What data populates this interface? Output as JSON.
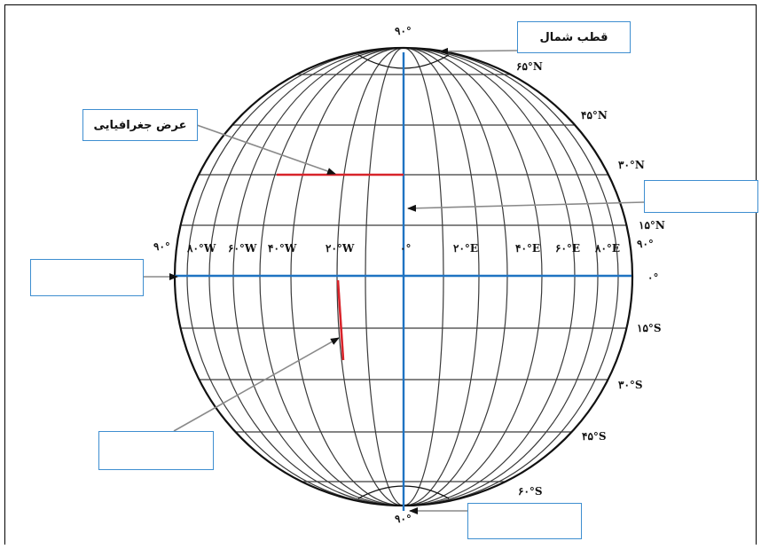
{
  "colors": {
    "grid": "#3a3a3a",
    "axis": "#1f73c2",
    "highlight": "#d8232a",
    "arrow": "#8a8a8a",
    "box_border": "#3e8ed0"
  },
  "labels": {
    "north_pole": "قطب شمال",
    "latitude": "عرض جغرافیایی",
    "blank": ""
  },
  "degrees": {
    "top_pole": "۹۰°",
    "bottom_pole": "۹۰°",
    "west_edge": "۹۰°",
    "east_edge": "۹۰°",
    "equator_zero": "۰°",
    "prime_zero": "۰°"
  },
  "longitudes": {
    "w80": "۸۰°W",
    "w60": "۶۰°W",
    "w40": "۴۰°W",
    "w20": "۲۰°W",
    "e20": "۲۰°E",
    "e40": "۴۰°E",
    "e60": "۶۰°E",
    "e80": "۸۰°E"
  },
  "latitudes": {
    "n65": "۶۵°N",
    "n45": "۴۵°N",
    "n30": "۳۰°N",
    "n15": "۱۵°N",
    "s15": "۱۵°S",
    "s30": "۳۰°S",
    "s45": "۴۵°S",
    "s60": "۶۰°S"
  }
}
